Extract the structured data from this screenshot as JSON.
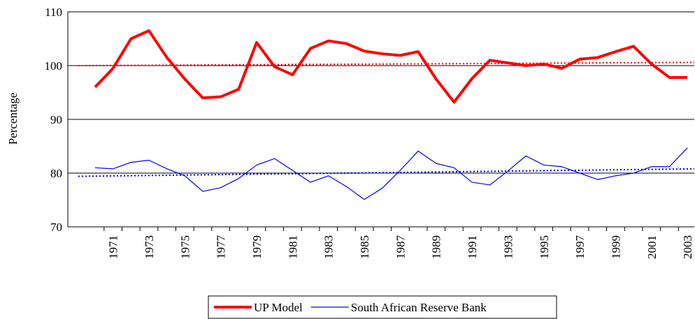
{
  "chart_data": {
    "type": "line",
    "y_label": "Percentage",
    "categories": [
      null,
      "1971",
      null,
      "1973",
      null,
      "1975",
      null,
      "1977",
      null,
      "1979",
      null,
      "1981",
      null,
      "1983",
      null,
      "1985",
      null,
      "1987",
      null,
      "1989",
      null,
      "1991",
      null,
      "1993",
      null,
      "1995",
      null,
      "1997",
      null,
      "1999",
      null,
      "2001",
      null,
      "2003"
    ],
    "series": [
      {
        "name": "UP Model",
        "color": "#ff0000",
        "width": 4,
        "values": [
          96,
          99.5,
          105,
          106.5,
          101.5,
          97.5,
          94,
          94.2,
          95.6,
          104.3,
          99.8,
          98.3,
          103.2,
          104.6,
          104.1,
          102.7,
          102.2,
          101.9,
          102.6,
          97.5,
          93.2,
          97.6,
          101,
          100.5,
          100,
          100.3,
          99.5,
          101.2,
          101.5,
          102.6,
          103.6,
          100.3,
          97.8,
          97.8
        ],
        "trend": {
          "start": 100,
          "end": 100.6
        }
      },
      {
        "name": "South African Reserve Bank",
        "color": "#0000ff",
        "width": 1.2,
        "values": [
          81,
          80.8,
          82,
          82.4,
          80.8,
          79.5,
          76.6,
          77.3,
          79,
          81.5,
          82.7,
          80.5,
          78.3,
          79.5,
          77.5,
          75.1,
          77.2,
          80.5,
          84.1,
          81.8,
          81,
          78.3,
          77.8,
          80.4,
          83.2,
          81.5,
          81.2,
          80,
          78.8,
          79.5,
          80,
          81.2,
          81.2,
          84.7
        ],
        "trend": {
          "start": 79.4,
          "end": 80.8
        }
      }
    ],
    "ylim": [
      70,
      110
    ],
    "yticks": [
      70,
      80,
      90,
      100,
      110
    ],
    "grid": true
  }
}
